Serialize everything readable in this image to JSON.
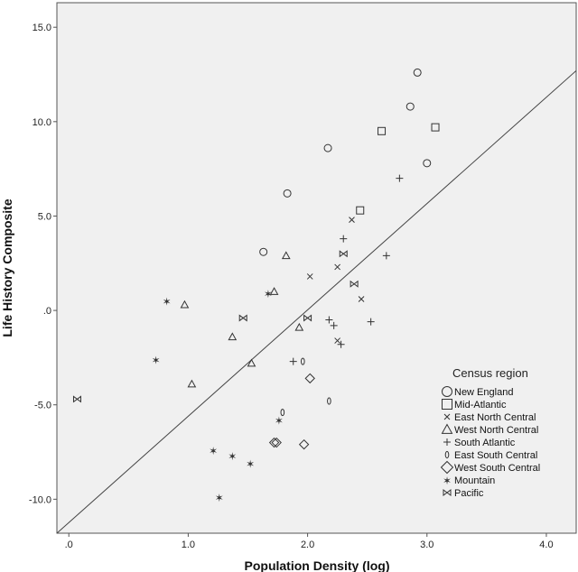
{
  "chart_data": {
    "type": "scatter",
    "xlabel": "Population Density (log)",
    "ylabel": "Life History Composite",
    "xlim": [
      -0.1,
      4.25
    ],
    "ylim": [
      -11.8,
      16.3
    ],
    "xticks": [
      0,
      1,
      2,
      3,
      4
    ],
    "xtick_labels": [
      ".0",
      "1.0",
      "2.0",
      "3.0",
      "4.0"
    ],
    "yticks": [
      -10,
      -5,
      0,
      5,
      10,
      15
    ],
    "ytick_labels": [
      "-10.0",
      "-5.0",
      ".0",
      "5.0",
      "10.0",
      "15.0"
    ],
    "fit_line": {
      "x1": -0.1,
      "y1": -11.8,
      "x2": 4.25,
      "y2": 12.7
    },
    "legend": {
      "title": "Census region",
      "position": "bottom-right"
    },
    "series": [
      {
        "name": "New England",
        "marker": "circle",
        "points": [
          [
            2.92,
            12.6
          ],
          [
            2.86,
            10.8
          ],
          [
            2.17,
            8.6
          ],
          [
            3.0,
            7.8
          ],
          [
            1.83,
            6.2
          ],
          [
            1.63,
            3.1
          ]
        ]
      },
      {
        "name": "Mid-Atlantic",
        "marker": "square",
        "points": [
          [
            2.62,
            9.5
          ],
          [
            3.07,
            9.7
          ],
          [
            2.44,
            5.3
          ]
        ]
      },
      {
        "name": "East North Central",
        "marker": "x",
        "points": [
          [
            2.37,
            4.8
          ],
          [
            2.25,
            2.3
          ],
          [
            2.02,
            1.8
          ],
          [
            2.45,
            0.6
          ],
          [
            2.25,
            -1.6
          ]
        ]
      },
      {
        "name": "West North Central",
        "marker": "triangle",
        "points": [
          [
            1.82,
            2.9
          ],
          [
            1.72,
            1.0
          ],
          [
            0.97,
            0.3
          ],
          [
            1.93,
            -0.9
          ],
          [
            1.37,
            -1.4
          ],
          [
            1.53,
            -2.8
          ],
          [
            1.03,
            -3.9
          ]
        ]
      },
      {
        "name": "South Atlantic",
        "marker": "plus",
        "points": [
          [
            2.77,
            7.0
          ],
          [
            2.3,
            3.8
          ],
          [
            2.66,
            2.9
          ],
          [
            2.18,
            -0.5
          ],
          [
            2.22,
            -0.8
          ],
          [
            2.53,
            -0.6
          ],
          [
            2.28,
            -1.8
          ],
          [
            1.88,
            -2.7
          ]
        ]
      },
      {
        "name": "East South Central",
        "marker": "zero",
        "points": [
          [
            1.96,
            -2.7
          ],
          [
            2.18,
            -4.8
          ],
          [
            1.79,
            -5.4
          ]
        ]
      },
      {
        "name": "West South Central",
        "marker": "diamond",
        "points": [
          [
            2.02,
            -3.6
          ],
          [
            1.72,
            -7.0
          ],
          [
            1.74,
            -7.0
          ],
          [
            1.97,
            -7.1
          ]
        ]
      },
      {
        "name": "Mountain",
        "marker": "star",
        "points": [
          [
            0.82,
            0.5
          ],
          [
            1.67,
            0.9
          ],
          [
            0.73,
            -2.6
          ],
          [
            1.76,
            -5.8
          ],
          [
            1.21,
            -7.4
          ],
          [
            1.37,
            -7.7
          ],
          [
            1.52,
            -8.1
          ],
          [
            1.26,
            -9.9
          ]
        ]
      },
      {
        "name": "Pacific",
        "marker": "bowtie",
        "points": [
          [
            2.3,
            3.0
          ],
          [
            2.39,
            1.4
          ],
          [
            1.46,
            -0.4
          ],
          [
            2.0,
            -0.4
          ],
          [
            0.07,
            -4.7
          ]
        ]
      }
    ]
  }
}
